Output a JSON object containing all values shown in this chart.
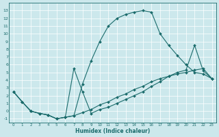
{
  "xlabel": "Humidex (Indice chaleur)",
  "bg_color": "#cce8ec",
  "grid_color": "#ffffff",
  "line_color": "#1a6b6b",
  "curve1_x": [
    0,
    1,
    2,
    3,
    4,
    5,
    6,
    7,
    8,
    9,
    10,
    11,
    12,
    13,
    14,
    15,
    16,
    17,
    18,
    19,
    20,
    21,
    22,
    23
  ],
  "curve1_y": [
    2.5,
    1.2,
    0.0,
    -0.3,
    -0.5,
    -1.0,
    -0.8,
    -0.6,
    3.5,
    6.5,
    9.0,
    11.0,
    12.0,
    12.5,
    12.8,
    13.0,
    12.8,
    10.0,
    8.5,
    7.2,
    6.0,
    5.0,
    4.8,
    4.2
  ],
  "curve2_x": [
    0,
    1,
    2,
    3,
    4,
    5,
    6,
    7,
    8,
    9,
    10,
    11,
    12,
    13,
    14,
    15,
    16,
    17,
    18,
    19,
    20,
    21,
    22,
    23
  ],
  "curve2_y": [
    2.5,
    1.2,
    0.0,
    -0.3,
    -0.5,
    -1.0,
    -0.8,
    5.5,
    2.5,
    -0.3,
    0.2,
    0.5,
    1.0,
    1.5,
    2.0,
    2.5,
    3.2,
    3.8,
    4.5,
    5.0,
    5.3,
    8.5,
    5.2,
    4.2
  ],
  "curve3_x": [
    0,
    1,
    2,
    3,
    4,
    5,
    6,
    7,
    8,
    9,
    10,
    11,
    12,
    13,
    14,
    15,
    16,
    17,
    18,
    19,
    20,
    21,
    22,
    23
  ],
  "curve3_y": [
    2.5,
    1.2,
    0.0,
    -0.3,
    -0.5,
    -1.0,
    -0.8,
    -0.6,
    -0.2,
    0.2,
    0.8,
    1.2,
    1.8,
    2.2,
    2.8,
    3.2,
    3.8,
    4.2,
    4.5,
    4.8,
    5.0,
    5.3,
    5.5,
    4.2
  ],
  "xlim": [
    0,
    23
  ],
  "ylim": [
    -1.5,
    14.0
  ],
  "yticks": [
    -1,
    0,
    1,
    2,
    3,
    4,
    5,
    6,
    7,
    8,
    9,
    10,
    11,
    12,
    13
  ],
  "xticks": [
    0,
    1,
    2,
    3,
    4,
    5,
    6,
    7,
    8,
    9,
    10,
    11,
    12,
    13,
    14,
    15,
    16,
    17,
    18,
    19,
    20,
    21,
    22,
    23
  ]
}
